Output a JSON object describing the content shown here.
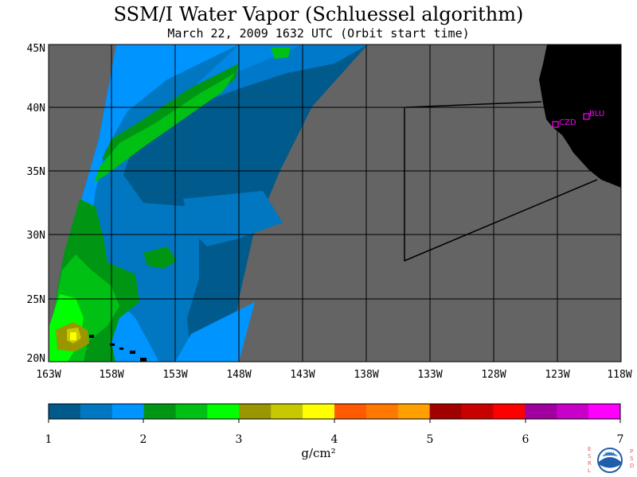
{
  "title": "SSM/I Water Vapor (Schluessel algorithm)",
  "subtitle": "March 22, 2009  1632 UTC  (Orbit start time)",
  "map": {
    "lon_labels": [
      "163W",
      "158W",
      "153W",
      "148W",
      "143W",
      "138W",
      "133W",
      "128W",
      "123W",
      "118W"
    ],
    "lat_labels": [
      "45N",
      "40N",
      "35N",
      "30N",
      "25N",
      "20N"
    ],
    "sites": [
      {
        "label": "CZD"
      },
      {
        "label": "BLU"
      }
    ],
    "colors": {
      "land": "#000000",
      "no_data": "#646464",
      "grid": "#000000",
      "site": "#ff00ff"
    }
  },
  "colorbar": {
    "tick_labels": [
      "1",
      "2",
      "3",
      "4",
      "5",
      "6",
      "7"
    ],
    "unit": "g/cm²",
    "colors": [
      "#005a8c",
      "#0077c0",
      "#0094ff",
      "#009614",
      "#00c014",
      "#00ff00",
      "#999600",
      "#c8c800",
      "#ffff00",
      "#ff5a00",
      "#ff7800",
      "#ffa000",
      "#a00000",
      "#c80000",
      "#ff0000",
      "#a000a0",
      "#c800c8",
      "#ff00ff"
    ]
  },
  "credit": {
    "left": "ESRL",
    "right": "PSD",
    "logo": "NOAA"
  }
}
